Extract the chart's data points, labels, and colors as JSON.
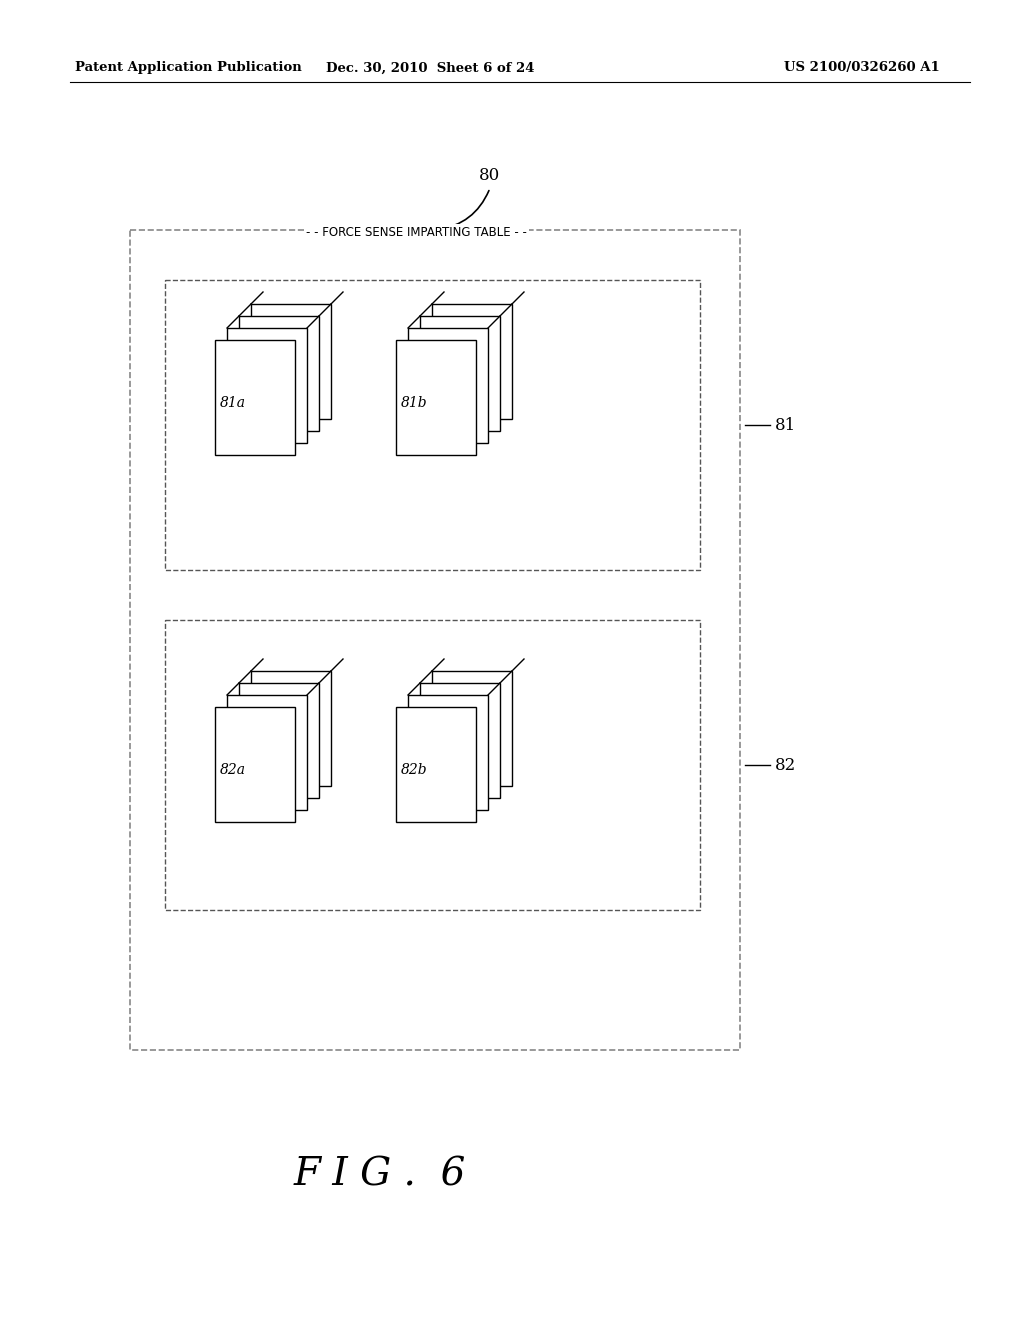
{
  "bg_color": "#ffffff",
  "header_left": "Patent Application Publication",
  "header_mid": "Dec. 30, 2010  Sheet 6 of 24",
  "header_right": "US 2100/0326260 A1",
  "fig_label": "F I G .  6",
  "label_table": "- - FORCE SENSE IMPARTING TABLE - -",
  "label_80": "80",
  "label_81": "81",
  "label_82": "82",
  "stack1a_label": "81a",
  "stack1b_label": "81b",
  "stack2a_label": "82a",
  "stack2b_label": "82b"
}
